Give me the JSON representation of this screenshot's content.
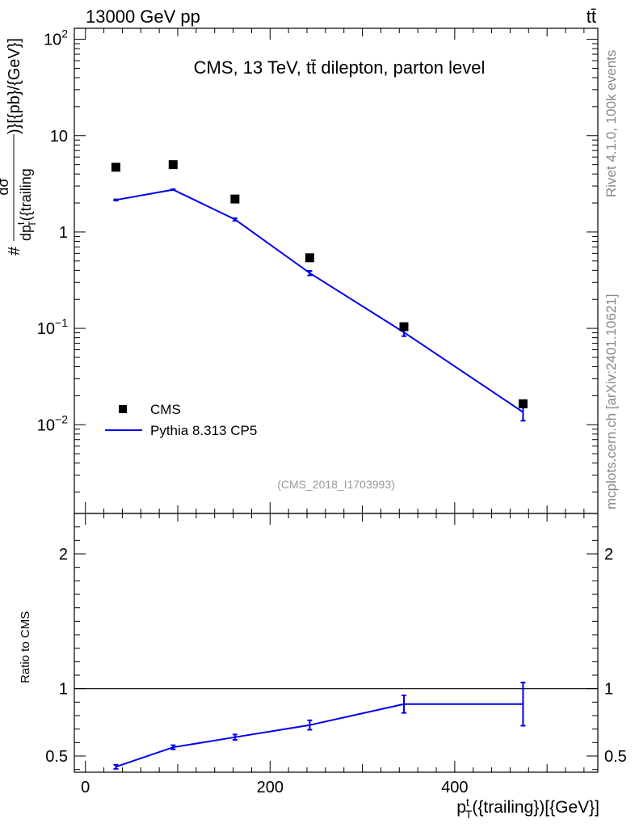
{
  "header": {
    "left": "13000 GeV pp",
    "right": "tt̄"
  },
  "side_labels": {
    "rivet": "Rivet 4.1.0,  100k events",
    "site": "mcplots.cern.ch [arXiv:2401.10621]"
  },
  "main_plot": {
    "title": "CMS, 13 TeV, tt̄ dilepton, parton level",
    "watermark": "(CMS_2018_I1703993)",
    "ylabel": {
      "prefix": "#",
      "numerator": "dσ",
      "denominator": "dp",
      "sup": "t",
      "sub": "T",
      "denominator_rest": "({trailing",
      "suffix": ")}[{pb}/{GeV}]"
    },
    "yticks": [
      {
        "value": 100,
        "base": "10",
        "exp": "2"
      },
      {
        "value": 10,
        "base": "10",
        "exp": ""
      },
      {
        "value": 1,
        "base": "1",
        "exp": ""
      },
      {
        "value": 0.1,
        "base": "10",
        "exp": "−1"
      },
      {
        "value": 0.01,
        "base": "10",
        "exp": "−2"
      }
    ]
  },
  "ratio_plot": {
    "ylabel": "Ratio to CMS",
    "yticks": [
      {
        "value": 2,
        "label": "2"
      },
      {
        "value": 1,
        "label": "1"
      },
      {
        "value": 0.5,
        "label": "0.5"
      }
    ]
  },
  "xaxis": {
    "label": {
      "main": "p",
      "sup": "t",
      "sub": "T",
      "rest": "({trailing})[{GeV}]"
    },
    "ticks": [
      {
        "value": 0,
        "label": "0"
      },
      {
        "value": 200,
        "label": "200"
      },
      {
        "value": 400,
        "label": "400"
      }
    ]
  },
  "legend": [
    {
      "label": "CMS",
      "marker": "square",
      "color": "#000000"
    },
    {
      "label": "Pythia 8.313 CP5",
      "marker": "line",
      "color": "#0000ee"
    }
  ],
  "chart_data": {
    "type": "scatter",
    "title": "CMS, 13 TeV, tt̄ dilepton, parton level",
    "xlabel": "p_T^t({trailing})[{GeV}]",
    "ylabel": "dσ/dp_T^t({trailing})[{pb}/{GeV}]",
    "xlim": [
      -12,
      555
    ],
    "ylim": [
      0.0012,
      130
    ],
    "yscale": "log",
    "ratio_ylim": [
      0.38,
      2.3
    ],
    "bins": [
      {
        "lo": 0,
        "hi": 65
      },
      {
        "lo": 65,
        "hi": 125
      },
      {
        "lo": 125,
        "hi": 200
      },
      {
        "lo": 200,
        "hi": 290
      },
      {
        "lo": 290,
        "hi": 400
      },
      {
        "lo": 400,
        "hi": 550
      }
    ],
    "series": [
      {
        "name": "CMS",
        "color": "#000000",
        "x": [
          33,
          95,
          162,
          243,
          345,
          474
        ],
        "y": [
          4.7,
          5.0,
          2.2,
          0.54,
          0.104,
          0.0165
        ]
      },
      {
        "name": "Pythia 8.313 CP5",
        "color": "#0000ee",
        "x": [
          33,
          95,
          162,
          243,
          345,
          474
        ],
        "y": [
          2.15,
          2.75,
          1.35,
          0.375,
          0.091,
          0.0135
        ],
        "yerr": [
          0.03,
          0.03,
          0.04,
          0.02,
          0.008,
          0.0025
        ]
      }
    ],
    "ratio": {
      "name": "Pythia 8.313 CP5 / CMS",
      "x": [
        33,
        95,
        162,
        243,
        345,
        474
      ],
      "y": [
        0.42,
        0.565,
        0.64,
        0.73,
        0.885,
        0.885
      ],
      "yerr": [
        0.015,
        0.015,
        0.02,
        0.035,
        0.065,
        0.16
      ],
      "reference": 1
    }
  }
}
